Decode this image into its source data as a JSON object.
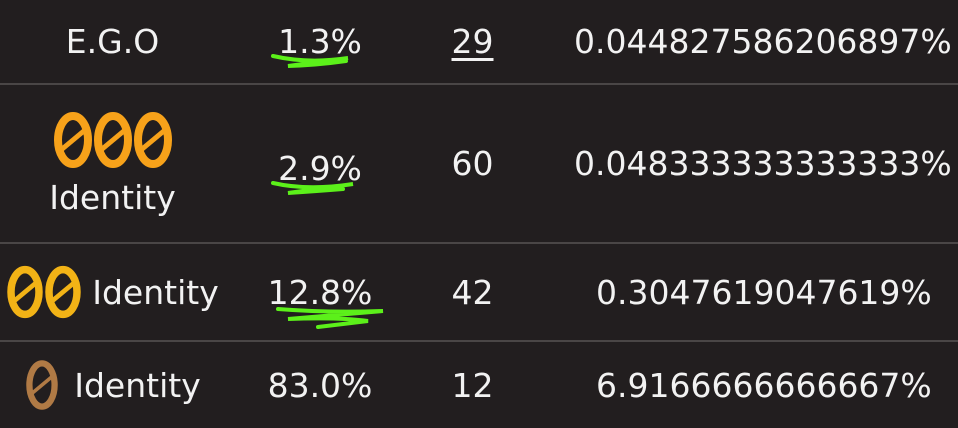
{
  "colors": {
    "background": "#221e1f",
    "text": "#f2f2f2",
    "divider": "#4a4646",
    "annotation": "#5cf01a",
    "rarity3": "#f7a21a",
    "rarity2": "#f2b316",
    "rarity1": "#b07a45"
  },
  "rows": [
    {
      "type": "E.G.O",
      "rarity_icons": 0,
      "rate": "1.3%",
      "count": "29",
      "per_unit": "0.044827586206897%",
      "annotated": true
    },
    {
      "type": "Identity",
      "rarity_icons": 3,
      "rate": "2.9%",
      "count": "60",
      "per_unit": "0.048333333333333%",
      "annotated": true
    },
    {
      "type": "Identity",
      "rarity_icons": 2,
      "rate": "12.8%",
      "count": "42",
      "per_unit": "0.3047619047619%",
      "annotated": true
    },
    {
      "type": "Identity",
      "rarity_icons": 1,
      "rate": "83.0%",
      "count": "12",
      "per_unit": "6.9166666666667%",
      "annotated": false
    }
  ]
}
